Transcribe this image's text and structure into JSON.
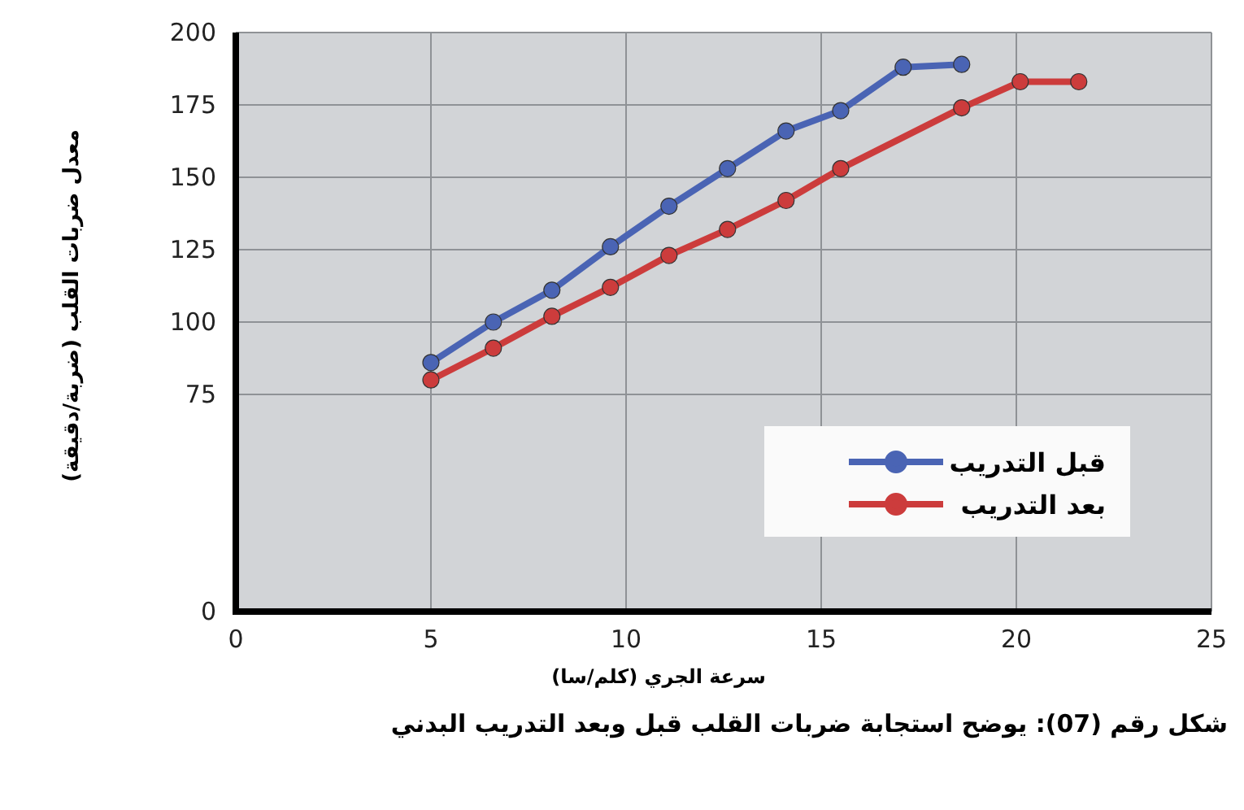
{
  "chart_data": {
    "type": "line",
    "xlabel": "سرعة الجري (كلم/سا)",
    "ylabel": "معدل ضربات القلب (ضربة/دقيقة)",
    "annotations": [
      "شكل رقم (07): يوضح استجابة ضربات القلب قبل وبعد التدريب البدني"
    ],
    "series": [
      {
        "name": "قبل التدريب",
        "color": "#4a64b4",
        "x": [
          5,
          6.6,
          8.1,
          9.6,
          11.1,
          12.6,
          14.1,
          15.5,
          17.1,
          18.6
        ],
        "values": [
          86,
          100,
          111,
          126,
          140,
          153,
          166,
          173,
          188,
          189
        ]
      },
      {
        "name": "بعد التدريب",
        "color": "#cc3c3c",
        "x": [
          5,
          6.6,
          8.1,
          9.6,
          11.1,
          12.6,
          14.1,
          15.5,
          18.6,
          20.1,
          21.6
        ],
        "values": [
          80,
          91,
          102,
          112,
          123,
          132,
          142,
          153,
          174,
          183,
          183
        ]
      }
    ],
    "xlim": [
      0,
      25
    ],
    "ylim": [
      0,
      200
    ],
    "xticks": [
      0,
      5,
      10,
      15,
      20,
      25
    ],
    "yticks": [
      0,
      75,
      100,
      125,
      150,
      175,
      200
    ],
    "grid": true,
    "legend": "bottom right",
    "marker": "circle",
    "line_style": "solid"
  }
}
